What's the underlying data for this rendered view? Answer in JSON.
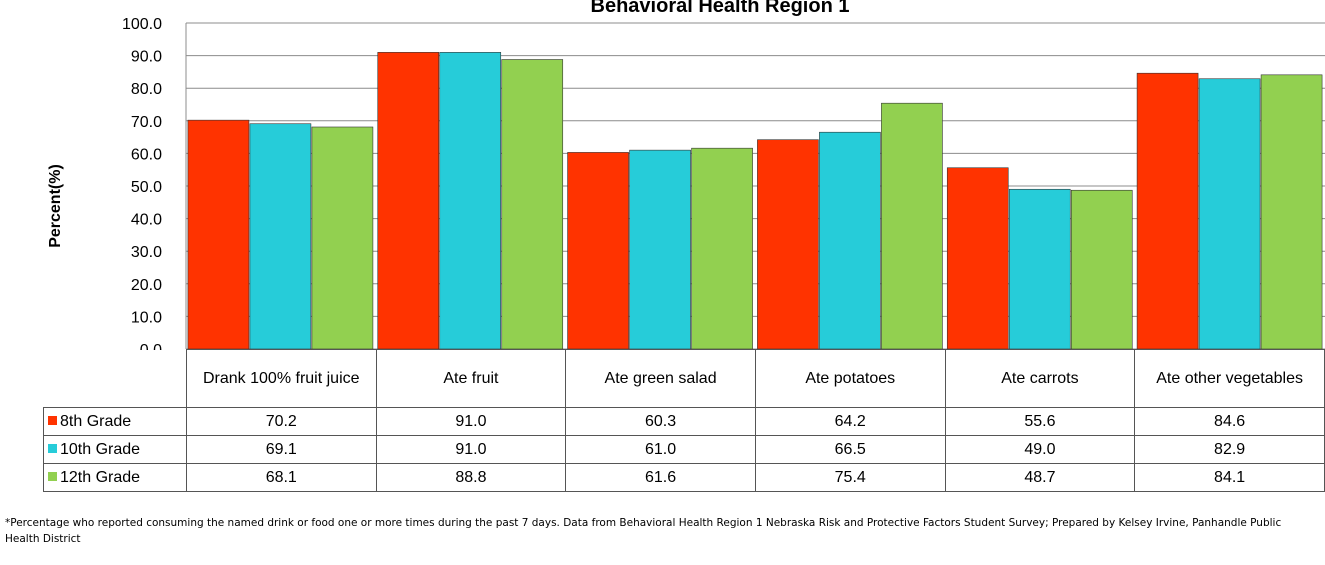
{
  "colors": {
    "8th Grade": "#ff3300",
    "10th Grade": "#26ccd9",
    "12th Grade": "#92d050"
  },
  "footnote": "*Percentage who reported consuming the named drink or food one or more times during the past 7 days. Data from Behavioral Health Region 1 Nebraska Risk and Protective Factors Student Survey; Prepared by Kelsey Irvine, Panhandle Public Health District",
  "chart_data": {
    "type": "bar",
    "title": "Behavioral Health Region 1",
    "ylabel": "Percent(%)",
    "xlabel": "",
    "ylim": [
      0,
      100
    ],
    "yticks": [
      "0.0",
      "10.0",
      "20.0",
      "30.0",
      "40.0",
      "50.0",
      "60.0",
      "70.0",
      "80.0",
      "90.0",
      "100.0"
    ],
    "grid": true,
    "legend": "data-table",
    "categories": [
      "Drank 100% fruit juice",
      "Ate fruit",
      "Ate green salad",
      "Ate potatoes",
      "Ate carrots",
      "Ate other vegetables"
    ],
    "series": [
      {
        "name": "8th Grade",
        "values": [
          70.2,
          91.0,
          60.3,
          64.2,
          55.6,
          84.6
        ],
        "labels": [
          "70.2",
          "91.0",
          "60.3",
          "64.2",
          "55.6",
          "84.6"
        ]
      },
      {
        "name": "10th Grade",
        "values": [
          69.1,
          91.0,
          61.0,
          66.5,
          49.0,
          82.9
        ],
        "labels": [
          "69.1",
          "91.0",
          "61.0",
          "66.5",
          "49.0",
          "82.9"
        ]
      },
      {
        "name": "12th Grade",
        "values": [
          68.1,
          88.8,
          61.6,
          75.4,
          48.7,
          84.1
        ],
        "labels": [
          "68.1",
          "88.8",
          "61.6",
          "75.4",
          "48.7",
          "84.1"
        ]
      }
    ]
  }
}
